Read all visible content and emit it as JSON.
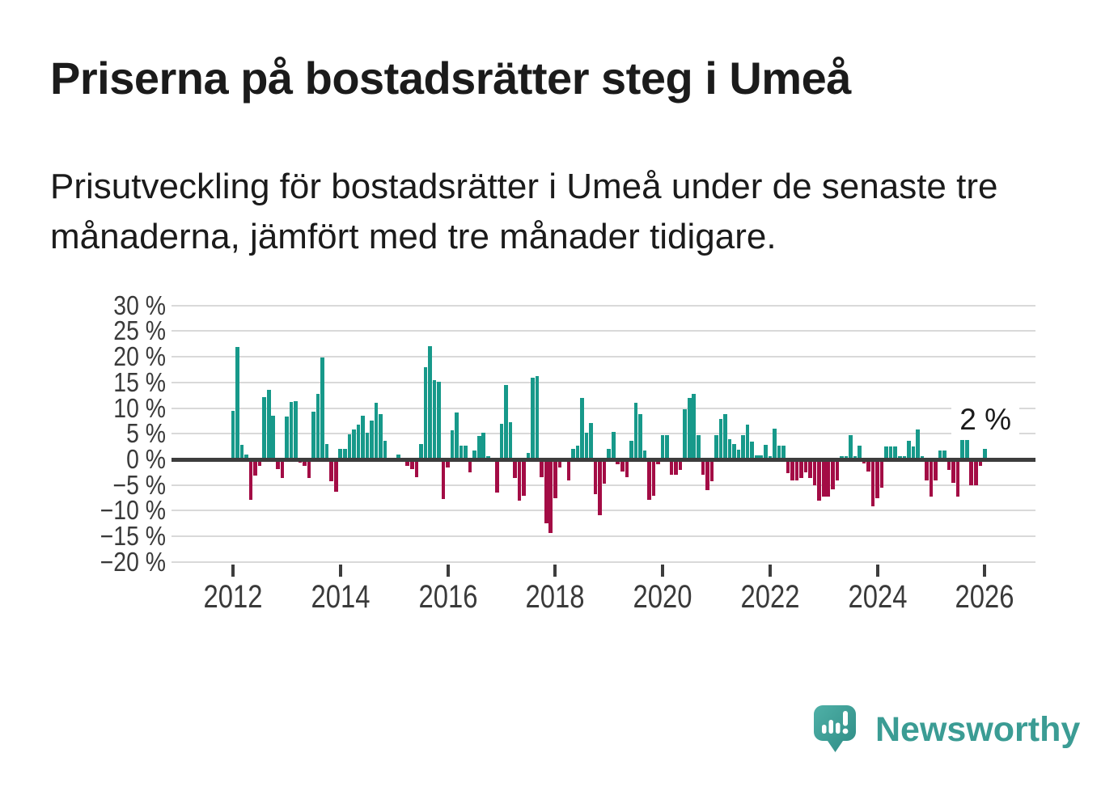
{
  "header": {
    "title": "Priserna på bostadsrätter steg i Umeå",
    "subtitle": "Prisutveckling för bostadsrätter i Umeå under de senaste tre månaderna, jämfört med tre månader tidigare."
  },
  "chart_data": {
    "type": "bar",
    "title": "Priserna på bostadsrätter steg i Umeå",
    "subtitle": "Prisutveckling för bostadsrätter i Umeå under de senaste tre månaderna, jämfört med tre månader tidigare",
    "unit": "%",
    "frequency": "monthly",
    "start_month": "2012-01",
    "end_month": "2026-01",
    "values": [
      9.5,
      21.9,
      2.9,
      0.9,
      -7.9,
      -3.1,
      -1.2,
      12.2,
      13.5,
      8.5,
      -1.9,
      -3.7,
      8.3,
      11.2,
      11.4,
      -0.6,
      -1.2,
      -3.7,
      9.3,
      12.7,
      19.9,
      3.0,
      -4.3,
      -6.3,
      2.0,
      2.0,
      4.9,
      5.9,
      6.7,
      8.5,
      5.2,
      7.6,
      11.0,
      8.8,
      3.6,
      -0.5,
      -0.4,
      0.9,
      -0.3,
      -1.2,
      -1.9,
      -3.5,
      3.0,
      17.9,
      22.1,
      15.4,
      15.2,
      -7.7,
      -1.5,
      5.6,
      9.1,
      2.7,
      2.7,
      -2.5,
      1.7,
      4.6,
      5.2,
      0.6,
      0.0,
      -6.5,
      7.0,
      14.5,
      7.3,
      -3.7,
      -8.1,
      -7.1,
      1.3,
      15.9,
      16.3,
      -3.4,
      -12.4,
      -14.4,
      -7.6,
      -1.5,
      0.0,
      -4.1,
      2.0,
      2.7,
      12.0,
      5.2,
      7.1,
      -6.7,
      -10.8,
      -4.8,
      2.0,
      5.3,
      -1.0,
      -2.4,
      -3.4,
      3.6,
      11.0,
      8.9,
      1.8,
      -7.9,
      -7.1,
      -1.0,
      4.8,
      4.8,
      -3.0,
      -3.0,
      -2.0,
      9.8,
      11.9,
      12.8,
      4.8,
      -3.0,
      -6.0,
      -4.3,
      4.8,
      7.9,
      8.9,
      3.9,
      3.0,
      1.9,
      4.8,
      6.8,
      3.5,
      0.8,
      0.8,
      2.8,
      0.7,
      6.0,
      2.7,
      2.7,
      -2.7,
      -4.1,
      -4.1,
      -3.6,
      -2.6,
      -3.6,
      -5.1,
      -8.1,
      -7.2,
      -7.2,
      -5.8,
      -4.1,
      0.7,
      0.7,
      4.8,
      0.7,
      2.7,
      -0.8,
      -2.4,
      -9.2,
      -7.5,
      -5.5,
      2.6,
      2.6,
      2.6,
      0.7,
      0.7,
      3.7,
      2.6,
      5.8,
      0.7,
      -4.1,
      -7.2,
      -4.1,
      1.8,
      1.8,
      -2.1,
      -4.6,
      -7.2,
      3.8,
      4.8,
      -5.1,
      -5.0,
      -1.2,
      2.0
    ],
    "ylim": [
      -20,
      30
    ],
    "ytick_values": [
      30,
      25,
      20,
      15,
      10,
      5,
      0,
      -5,
      -10,
      -15,
      -20
    ],
    "ytick_labels": [
      "30 %",
      "25 %",
      "20 %",
      "15 %",
      "10 %",
      "5 %",
      "0 %",
      "−5 %",
      "−10 %",
      "−15 %",
      "−20 %"
    ],
    "xtick_labels": [
      "2012",
      "2014",
      "2016",
      "2018",
      "2020",
      "2022",
      "2024",
      "2026"
    ],
    "grid": true,
    "legend": "none",
    "annotation": {
      "text": "2 %",
      "refers_to": "last-value"
    },
    "colors": {
      "positive": "#17998a",
      "negative": "#a30c45",
      "zero_line": "#3d3d3d",
      "gridline": "#d9d9d9"
    }
  },
  "branding": {
    "name": "Newsworthy",
    "logo_icon": "speech-bubble-bar-chart-icon",
    "color": "#3b9c94"
  }
}
